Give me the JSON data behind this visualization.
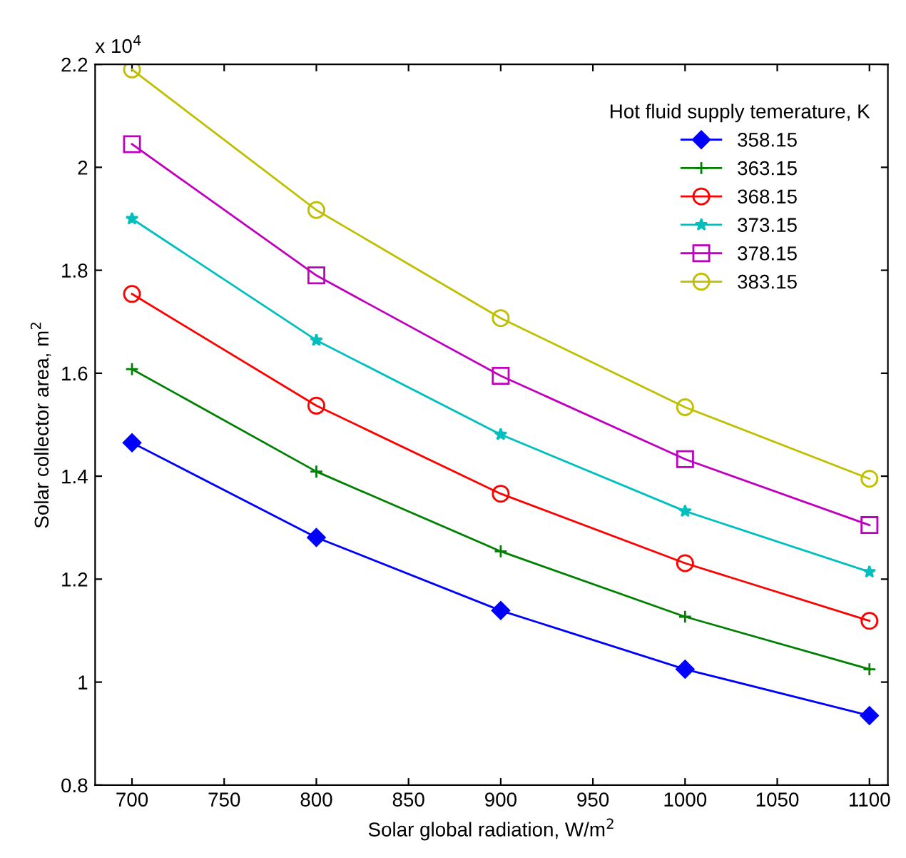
{
  "chart_data": {
    "type": "line",
    "xlabel": "Solar global radiation, W/m$^{2}$",
    "ylabel": "Solar collector area, m$^{2}$",
    "legend_title": "Hot fluid supply temerature, K",
    "x": [
      700,
      800,
      900,
      1000,
      1100
    ],
    "series": [
      {
        "name": "358.15",
        "color": "#0000ff",
        "marker": "diamond",
        "values": [
          1.465,
          1.281,
          1.139,
          1.025,
          0.935
        ]
      },
      {
        "name": "363.15",
        "color": "#008000",
        "marker": "cross",
        "values": [
          1.608,
          1.409,
          1.254,
          1.127,
          1.025
        ]
      },
      {
        "name": "368.15",
        "color": "#ff0000",
        "marker": "circle",
        "values": [
          1.754,
          1.537,
          1.366,
          1.231,
          1.119
        ]
      },
      {
        "name": "373.15",
        "color": "#00bfbf",
        "marker": "star",
        "values": [
          1.9,
          1.664,
          1.481,
          1.332,
          1.214
        ]
      },
      {
        "name": "378.15",
        "color": "#bf00bf",
        "marker": "square",
        "values": [
          2.045,
          1.79,
          1.595,
          1.433,
          1.305
        ]
      },
      {
        "name": "383.15",
        "color": "#bfbf00",
        "marker": "circle",
        "values": [
          2.19,
          1.917,
          1.707,
          1.534,
          1.395
        ]
      }
    ],
    "xlim": [
      680,
      1110
    ],
    "xticks": [
      700,
      750,
      800,
      850,
      900,
      950,
      1000,
      1050,
      1100
    ],
    "ylim": [
      0.8,
      2.2
    ],
    "yticks": [
      0.8,
      1,
      1.2,
      1.4,
      1.6,
      1.8,
      2,
      2.2
    ],
    "annotations": [
      "x 10$^{4}$"
    ],
    "grid": false,
    "legend": "top right",
    "line_style": "solid"
  }
}
